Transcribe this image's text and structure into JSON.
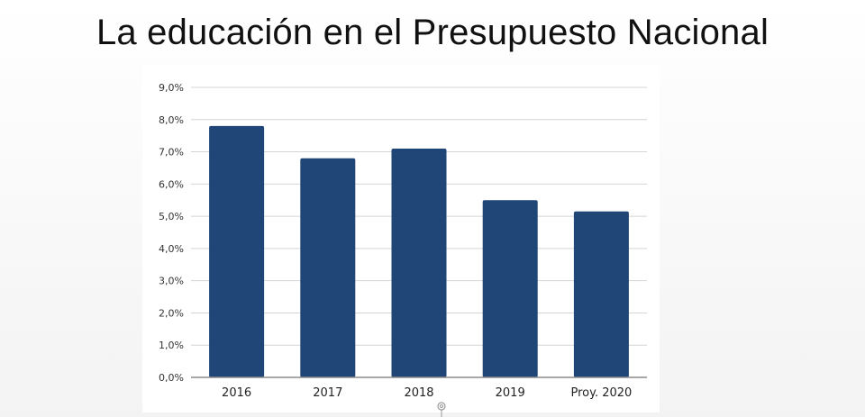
{
  "slide": {
    "title": "La educación en el Presupuesto Nacional"
  },
  "chart_data": {
    "type": "bar",
    "categories": [
      "2016",
      "2017",
      "2018",
      "2019",
      "Proy. 2020"
    ],
    "values": [
      7.8,
      6.8,
      7.1,
      5.5,
      5.15
    ],
    "y_tick_labels": [
      "0,0%",
      "1,0%",
      "2,0%",
      "3,0%",
      "4,0%",
      "5,0%",
      "6,0%",
      "7,0%",
      "8,0%",
      "9,0%"
    ],
    "y_ticks": [
      0,
      1,
      2,
      3,
      4,
      5,
      6,
      7,
      8,
      9
    ],
    "ylim": [
      0,
      9
    ],
    "title": "",
    "xlabel": "",
    "ylabel": "",
    "grid": true,
    "legend": "none",
    "colors": {
      "bar": "#1f4677",
      "grid": "#d4d4d4",
      "axis": "#8c8c8c",
      "tick_text": "#333333",
      "category_text": "#222222"
    }
  }
}
